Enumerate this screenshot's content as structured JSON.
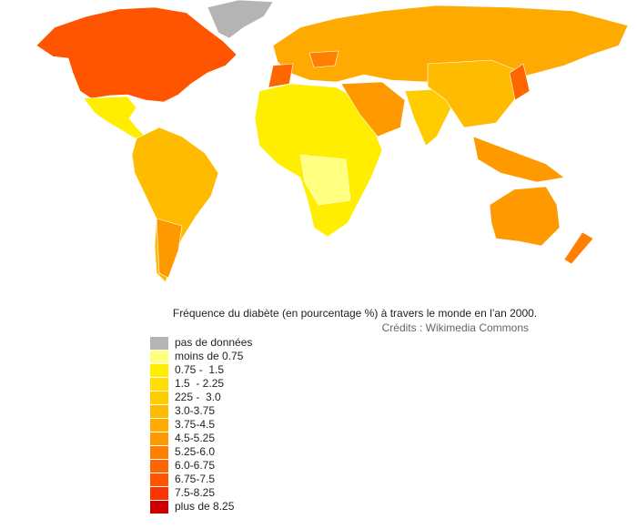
{
  "caption": "Fréquence du diabète (en pourcentage %) à travers le monde en l’an 2000.",
  "credits": "Crédits : Wikimedia Commons",
  "legend": [
    {
      "label": "pas de données",
      "color": "#b4b4b4"
    },
    {
      "label": "moins de 0.75",
      "color": "#ffff80"
    },
    {
      "label": "0.75 -  1.5",
      "color": "#ffee00"
    },
    {
      "label": "1.5  - 2.25",
      "color": "#ffdd00"
    },
    {
      "label": "225 -  3.0",
      "color": "#ffcc00"
    },
    {
      "label": "3.0-3.75",
      "color": "#ffbb00"
    },
    {
      "label": "3.75-4.5",
      "color": "#ffaa00"
    },
    {
      "label": "4.5-5.25",
      "color": "#ff9900"
    },
    {
      "label": "5.25-6.0",
      "color": "#ff8000"
    },
    {
      "label": "6.0-6.75",
      "color": "#ff6600"
    },
    {
      "label": "6.75-7.5",
      "color": "#ff5500"
    },
    {
      "label": "7.5-8.25",
      "color": "#ff3300"
    },
    {
      "label": "plus de 8.25",
      "color": "#cc0000"
    }
  ]
}
